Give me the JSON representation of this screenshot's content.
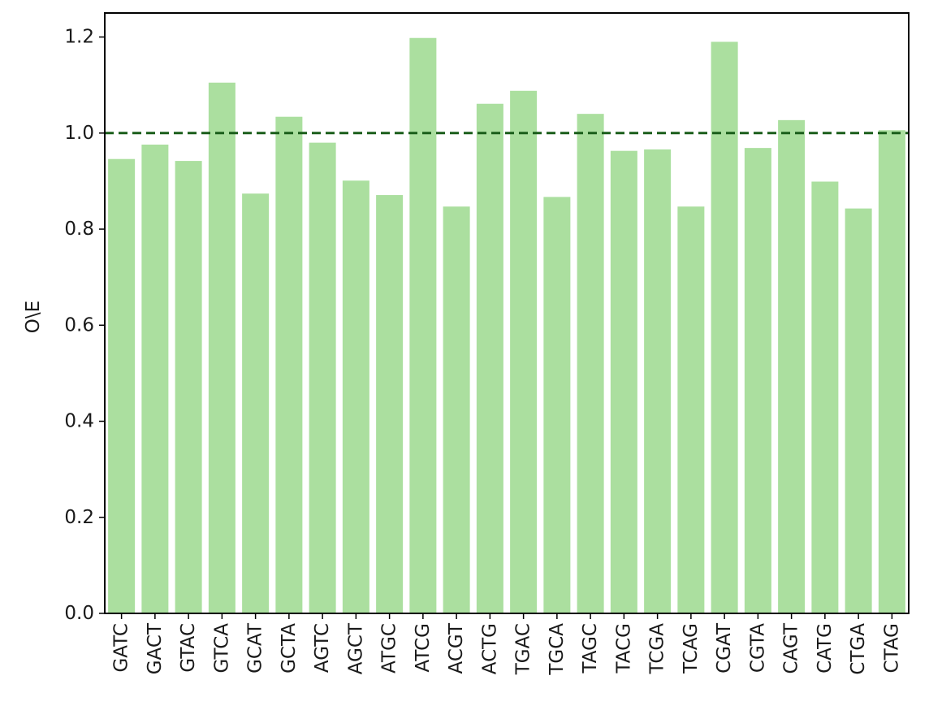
{
  "chart_data": {
    "type": "bar",
    "title": "",
    "xlabel": "",
    "ylabel": "O\\E",
    "categories": [
      "GATC",
      "GACT",
      "GTAC",
      "GTCA",
      "GCAT",
      "GCTA",
      "AGTC",
      "AGCT",
      "ATGC",
      "ATCG",
      "ACGT",
      "ACTG",
      "TGAC",
      "TGCA",
      "TAGC",
      "TACG",
      "TCGA",
      "TCAG",
      "CGAT",
      "CGTA",
      "CAGT",
      "CATG",
      "CTGA",
      "CTAG"
    ],
    "values": [
      0.946,
      0.976,
      0.942,
      1.105,
      0.874,
      1.034,
      0.98,
      0.901,
      0.871,
      1.198,
      0.847,
      1.061,
      1.088,
      0.867,
      1.04,
      0.963,
      0.966,
      0.847,
      1.19,
      0.969,
      1.027,
      0.899,
      0.843,
      1.006
    ],
    "ylim": [
      0.0,
      1.25
    ],
    "yticks": [
      "0.0",
      "0.2",
      "0.4",
      "0.6",
      "0.8",
      "1.0",
      "1.2"
    ],
    "reference_line": {
      "y": 1.0,
      "style": "dashed",
      "color": "#1a5e1a"
    },
    "bar_color": "#abdf9f",
    "grid": false,
    "legend": "none"
  }
}
